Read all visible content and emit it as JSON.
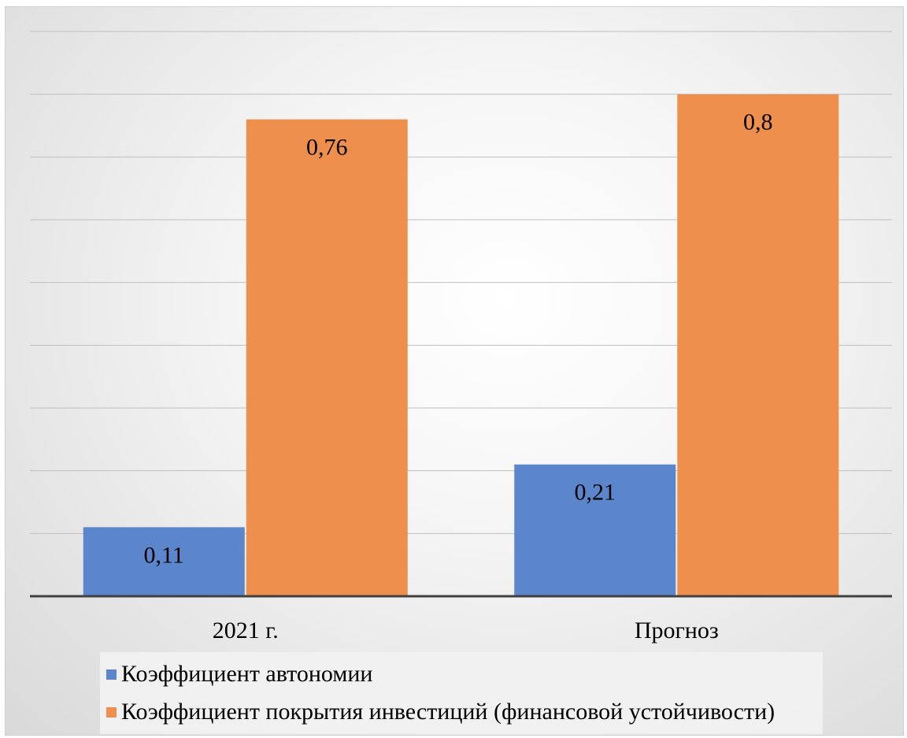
{
  "chart_data": {
    "type": "bar",
    "categories": [
      "2021 г.",
      "Прогноз"
    ],
    "series": [
      {
        "name": "Коэффициент автономии",
        "values": [
          0.11,
          0.21
        ],
        "labels": [
          "0,11",
          "0,21"
        ],
        "color": "#5b86cb"
      },
      {
        "name": "Коэффициент покрытия инвестиций (финансовой устойчивости)",
        "values": [
          0.76,
          0.8
        ],
        "labels": [
          "0,76",
          "0,8"
        ],
        "color": "#ee8f4e"
      }
    ],
    "ylim": [
      0,
      0.9
    ],
    "grid": true,
    "gridline_step": 0.1,
    "legend_position": "bottom",
    "title": "",
    "xlabel": "",
    "ylabel": ""
  }
}
